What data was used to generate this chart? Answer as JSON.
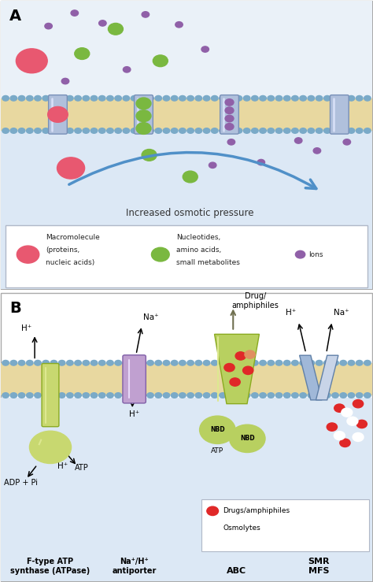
{
  "fig_width": 4.74,
  "fig_height": 7.39,
  "dpi": 100,
  "bg_white": "#ffffff",
  "bg_light_blue": "#dce8f5",
  "bg_ext": "#eaf1f8",
  "membrane_tan": "#e8d8a0",
  "membrane_tan2": "#ddd090",
  "lipid_blue": "#8aaecc",
  "channel_blue": "#b0c0dc",
  "channel_edge": "#7890b8",
  "red_mol": "#e85870",
  "green_mol": "#7ab840",
  "purple_ion": "#9060a8",
  "arrow_blue": "#5090c8",
  "atp_green": "#c8d870",
  "atp_edge": "#8aaa20",
  "antiporter_purple": "#c0a0d0",
  "antiporter_edge": "#8060a8",
  "abc_green": "#b8d060",
  "smr_blue": "#a0b8d8",
  "red_drug": "#e02828",
  "blue_osmo_edge": "#3060c0",
  "panel_border": "#aaaaaa",
  "label_A": "A",
  "label_B": "B",
  "text_osmotic": "Increased osmotic pressure",
  "text_hplus": "H⁺",
  "text_naplus": "Na⁺",
  "text_adppi": "ADP + Pi",
  "text_atp": "ATP",
  "text_nbd": "NBD",
  "text_drug_amphi": "Drug/\namphiphiles",
  "text_nah": "Na⁺/H⁺\nantiporter",
  "text_fatp": "F-type ATP\nsynthase (ATPase)",
  "text_abc": "ABC",
  "text_smr": "SMR\nMFS",
  "leg_macro1": "Macromolecule",
  "leg_macro2": "(proteins,",
  "leg_macro3": "nucleic acids)",
  "leg_nucl1": "Nucleotides,",
  "leg_nucl2": "amino acids,",
  "leg_nucl3": "small metabolites",
  "leg_ions": "Ions",
  "leg_drugs": "Drugs/amphiphiles",
  "leg_osmo": "Osmolytes"
}
